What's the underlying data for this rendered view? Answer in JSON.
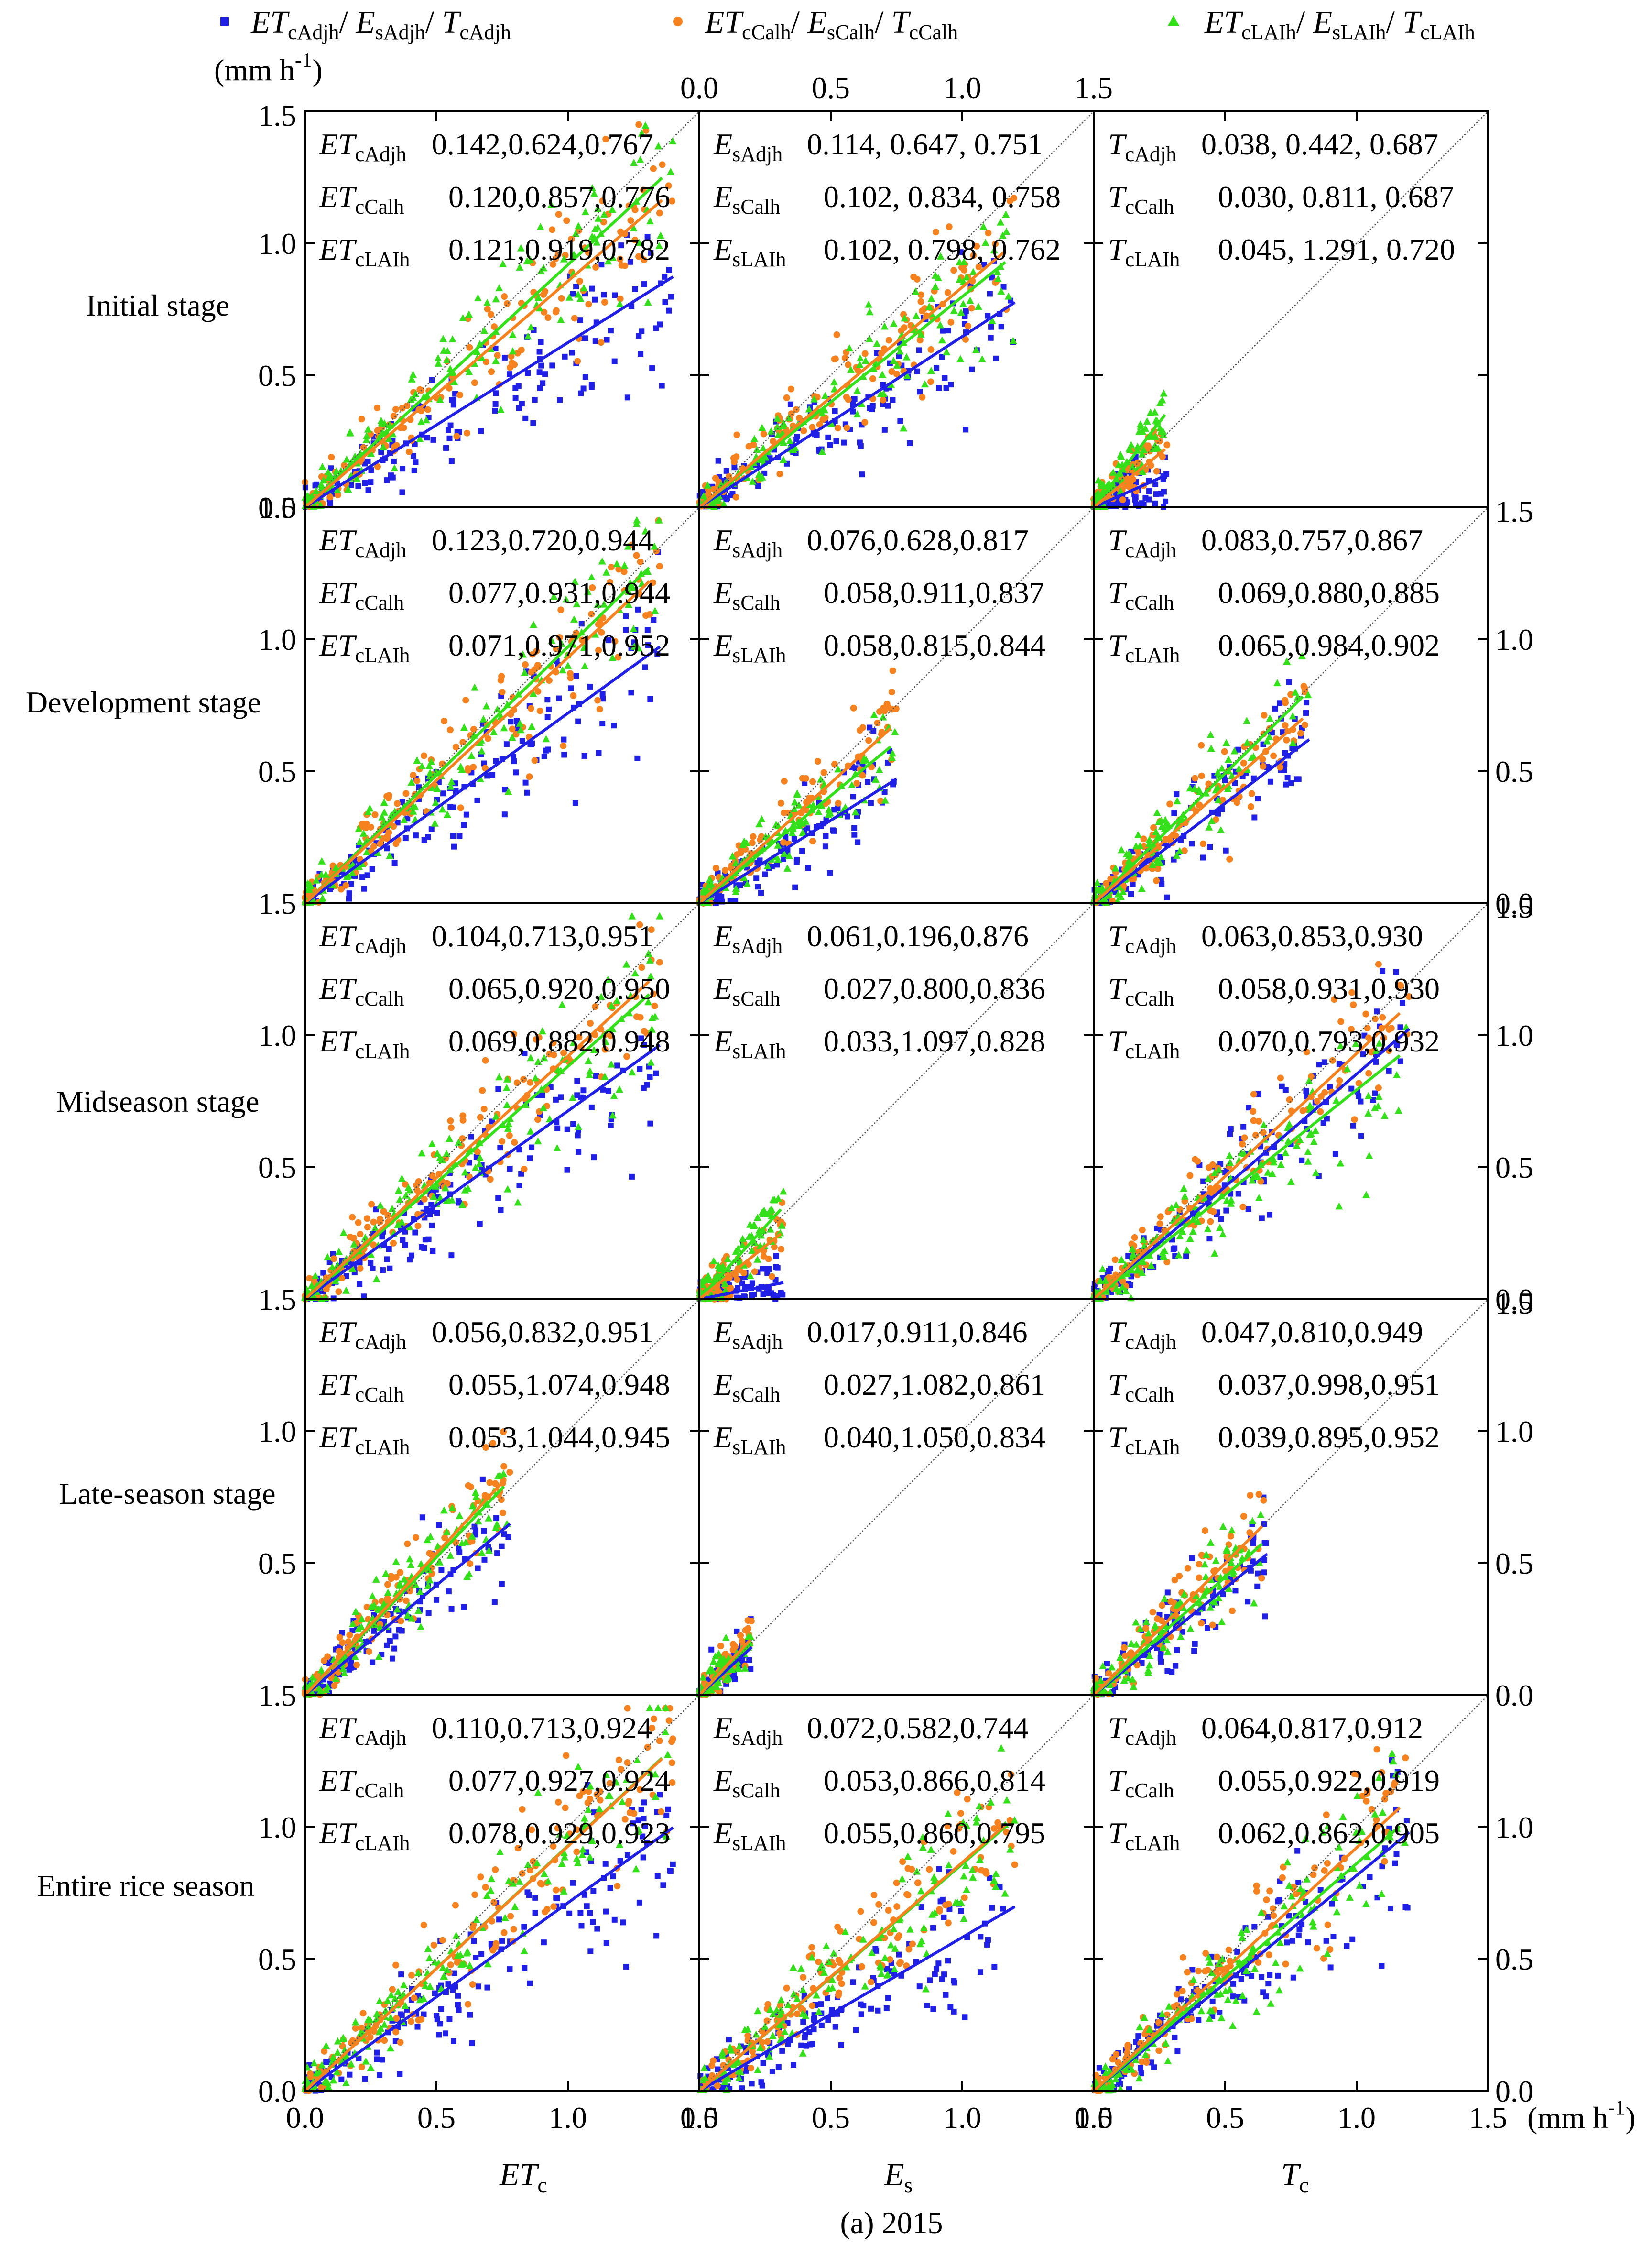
{
  "figure": {
    "caption": "(a) 2015",
    "unit": "(mm h",
    "unit_sup": "-1",
    "unit_close": ")",
    "top_axis_unit_suffix": "(mm h-1)"
  },
  "legend": [
    {
      "name": "ETcAdjh/ EsAdjh/ TcAdjh",
      "parts": [
        [
          "ET",
          "cAdjh"
        ],
        [
          "E",
          "sAdjh"
        ],
        [
          "T",
          "cAdjh"
        ]
      ],
      "color": "#1f1fe6",
      "marker": "square"
    },
    {
      "name": "ETcCalh/ EsCalh/ TcCalh",
      "parts": [
        [
          "ET",
          "cCalh"
        ],
        [
          "E",
          "sCalh"
        ],
        [
          "T",
          "cCalh"
        ]
      ],
      "color": "#f5821f",
      "marker": "circle"
    },
    {
      "name": "ETcLAIh/ EsLAIh/ TcLAIh",
      "parts": [
        [
          "ET",
          "cLAIh"
        ],
        [
          "E",
          "sLAIh"
        ],
        [
          "T",
          "cLAIh"
        ]
      ],
      "color": "#33e01a",
      "marker": "triangle"
    }
  ],
  "colors": {
    "adj": "#1f1fe6",
    "cal": "#f5821f",
    "lai": "#33e01a",
    "one_to_one": "#555555"
  },
  "row_labels": [
    "Initial stage",
    "Development stage",
    "Midseason stage",
    "Late-season stage",
    "Entire rice season"
  ],
  "column_labels": [
    {
      "main": "ET",
      "sub": "c"
    },
    {
      "main": "E",
      "sub": "s"
    },
    {
      "main": "T",
      "sub": "c"
    }
  ],
  "series_prefix": [
    [
      [
        "ET",
        "cAdjh"
      ],
      [
        "ET",
        "cCalh"
      ],
      [
        "ET",
        "cLAIh"
      ]
    ],
    [
      [
        "E",
        "sAdjh"
      ],
      [
        "E",
        "sCalh"
      ],
      [
        "E",
        "sLAIh"
      ]
    ],
    [
      [
        "T",
        "cAdjh"
      ],
      [
        "T",
        "cCalh"
      ],
      [
        "T",
        "cLAIh"
      ]
    ]
  ],
  "chart_data": {
    "type": "scatter",
    "title": "(a) 2015",
    "layout": "5 rows (crop stages) x 3 columns (ETc, Es, Tc)",
    "xlim": [
      0,
      1.5
    ],
    "ylim": [
      0,
      1.5
    ],
    "tick_labels": [
      "0.0",
      "0.5",
      "1.0",
      "1.5"
    ],
    "one_to_one_line": true,
    "stats_description": "each panel lists for each model: RMSE, slope, R2 (as printed)",
    "panels": [
      [
        {
          "stage": "Initial stage",
          "var": "ETc",
          "stats": [
            "0.142,0.624,0.767",
            "0.120,0.857,0.776",
            "0.121,0.919,0.782"
          ],
          "slopes": [
            0.624,
            0.857,
            0.919
          ],
          "xmax": 1.4,
          "ybias": [
            0.0,
            0.0,
            0.0
          ]
        },
        {
          "stage": "Initial stage",
          "var": "Es",
          "stats": [
            "0.114, 0.647, 0.751",
            "0.102, 0.834, 0.758",
            "0.102, 0.798, 0.762"
          ],
          "slopes": [
            0.647,
            0.834,
            0.798
          ],
          "xmax": 1.2,
          "ybias": [
            0.0,
            0.0,
            0.0
          ]
        },
        {
          "stage": "Initial stage",
          "var": "Tc",
          "stats": [
            "0.038, 0.442, 0.687",
            "0.030, 0.811, 0.687",
            "0.045, 1.291, 0.720"
          ],
          "slopes": [
            0.442,
            0.811,
            1.291
          ],
          "xmax": 0.28,
          "ybias": [
            0.0,
            0.0,
            0.0
          ]
        }
      ],
      [
        {
          "stage": "Development stage",
          "var": "ETc",
          "stats": [
            "0.123,0.720,0.944",
            "0.077,0.931,0.944",
            "0.071,0.971,0.952"
          ],
          "slopes": [
            0.72,
            0.931,
            0.971
          ],
          "xmax": 1.35,
          "ybias": [
            0.0,
            0.0,
            0.0
          ]
        },
        {
          "stage": "Development stage",
          "var": "Es",
          "stats": [
            "0.076,0.628,0.817",
            "0.058,0.911,0.837",
            "0.058,0.815,0.844"
          ],
          "slopes": [
            0.628,
            0.911,
            0.815
          ],
          "xmax": 0.75,
          "ybias": [
            0.0,
            0.0,
            0.0
          ]
        },
        {
          "stage": "Development stage",
          "var": "Tc",
          "stats": [
            "0.083,0.757,0.867",
            "0.069,0.880,0.885",
            "0.065,0.984,0.902"
          ],
          "slopes": [
            0.757,
            0.88,
            0.984
          ],
          "xmax": 0.82,
          "ybias": [
            0.0,
            0.0,
            0.0
          ]
        }
      ],
      [
        {
          "stage": "Midseason stage",
          "var": "ETc",
          "stats": [
            "0.104,0.713,0.951",
            "0.065,0.920,0.950",
            "0.069,0.882,0.948"
          ],
          "slopes": [
            0.713,
            0.92,
            0.882
          ],
          "xmax": 1.35,
          "ybias": [
            0.0,
            0.0,
            0.0
          ]
        },
        {
          "stage": "Midseason stage",
          "var": "Es",
          "stats": [
            "0.061,0.196,0.876",
            "0.027,0.800,0.836",
            "0.033,1.097,0.828"
          ],
          "slopes": [
            0.196,
            0.8,
            1.097
          ],
          "xmax": 0.32,
          "ybias": [
            0.0,
            0.0,
            0.0
          ]
        },
        {
          "stage": "Midseason stage",
          "var": "Tc",
          "stats": [
            "0.063,0.853,0.930",
            "0.058,0.931,0.930",
            "0.070,0.793,0.932"
          ],
          "slopes": [
            0.853,
            0.931,
            0.793
          ],
          "xmax": 1.2,
          "ybias": [
            0.0,
            0.0,
            0.0
          ]
        }
      ],
      [
        {
          "stage": "Late-season stage",
          "var": "ETc",
          "stats": [
            "0.056,0.832,0.951",
            "0.055,1.074,0.948",
            "0.053,1.044,0.945"
          ],
          "slopes": [
            0.832,
            1.074,
            1.044
          ],
          "xmax": 0.78,
          "ybias": [
            0.0,
            0.0,
            0.0
          ]
        },
        {
          "stage": "Late-season stage",
          "var": "Es",
          "stats": [
            "0.017,0.911,0.846",
            "0.027,1.082,0.861",
            "0.040,1.050,0.834"
          ],
          "slopes": [
            0.911,
            1.082,
            1.05
          ],
          "xmax": 0.2,
          "ybias": [
            0.0,
            0.0,
            0.0
          ]
        },
        {
          "stage": "Late-season stage",
          "var": "Tc",
          "stats": [
            "0.047,0.810,0.949",
            "0.037,0.998,0.951",
            "0.039,0.895,0.952"
          ],
          "slopes": [
            0.81,
            0.998,
            0.895
          ],
          "xmax": 0.66,
          "ybias": [
            0.0,
            0.0,
            0.0
          ]
        }
      ],
      [
        {
          "stage": "Entire rice season",
          "var": "ETc",
          "stats": [
            "0.110,0.713,0.924",
            "0.077,0.927,0.924",
            "0.078,0.929,0.923"
          ],
          "slopes": [
            0.713,
            0.927,
            0.929
          ],
          "xmax": 1.4,
          "ybias": [
            0.0,
            0.0,
            0.0
          ]
        },
        {
          "stage": "Entire rice season",
          "var": "Es",
          "stats": [
            "0.072,0.582,0.744",
            "0.053,0.866,0.814",
            "0.055,0.860,0.795"
          ],
          "slopes": [
            0.582,
            0.866,
            0.86
          ],
          "xmax": 1.2,
          "ybias": [
            0.0,
            0.0,
            0.0
          ]
        },
        {
          "stage": "Entire rice season",
          "var": "Tc",
          "stats": [
            "0.064,0.817,0.912",
            "0.055,0.922,0.919",
            "0.062,0.862,0.905"
          ],
          "slopes": [
            0.817,
            0.922,
            0.862
          ],
          "xmax": 1.2,
          "ybias": [
            0.0,
            0.0,
            0.0
          ]
        }
      ]
    ]
  }
}
